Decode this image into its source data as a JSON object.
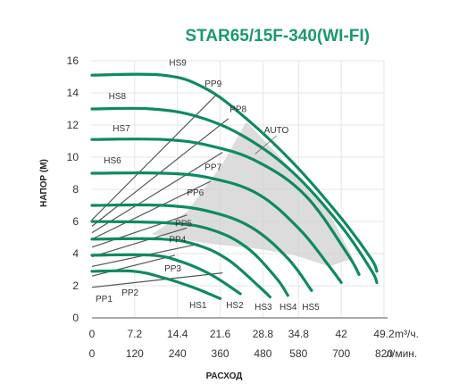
{
  "title": "STAR65/15F-340(WI-FI)",
  "chart_data": {
    "type": "line",
    "title": "STAR65/15F-340(WI-FI)",
    "ylabel": "НАПОР (М)",
    "xlabel": "РАСХОД",
    "ylim": [
      0,
      16
    ],
    "yticks": [
      "0",
      "2",
      "4",
      "6",
      "8",
      "10",
      "12",
      "14",
      "16"
    ],
    "xlim_m3h": [
      0,
      49.2
    ],
    "x_ticks_m3h": [
      "0",
      "7.2",
      "14.4",
      "21.6",
      "28.8",
      "34.8",
      "42",
      "49.2"
    ],
    "x_unit_m3h": "m³/ч.",
    "x_ticks_lmin": [
      "0",
      "120",
      "240",
      "360",
      "480",
      "580",
      "700",
      "820"
    ],
    "x_unit_lmin": "л/мин.",
    "grid": true,
    "colors": {
      "curve": "#0f8a5f",
      "pp_line": "#555555",
      "shade": "#d0d0d0",
      "title": "#1a9a6c"
    },
    "series": [
      {
        "name": "HS1",
        "values": [
          [
            0,
            2.9
          ],
          [
            7,
            2.9
          ],
          [
            12,
            2.5
          ],
          [
            17,
            1.9
          ],
          [
            21.6,
            1.2
          ]
        ]
      },
      {
        "name": "HS2",
        "values": [
          [
            0,
            3.9
          ],
          [
            10,
            3.9
          ],
          [
            15,
            3.5
          ],
          [
            20,
            2.7
          ],
          [
            25,
            1.5
          ]
        ]
      },
      {
        "name": "HS3",
        "values": [
          [
            0,
            4.9
          ],
          [
            12,
            4.9
          ],
          [
            18,
            4.5
          ],
          [
            23,
            3.6
          ],
          [
            28,
            2.0
          ],
          [
            30,
            1.3
          ]
        ]
      },
      {
        "name": "HS4",
        "values": [
          [
            0,
            6.0
          ],
          [
            13,
            5.9
          ],
          [
            20,
            5.5
          ],
          [
            26,
            4.4
          ],
          [
            31,
            2.5
          ],
          [
            33,
            1.4
          ]
        ]
      },
      {
        "name": "HS5",
        "values": [
          [
            0,
            7.0
          ],
          [
            12,
            7.0
          ],
          [
            20,
            6.6
          ],
          [
            27,
            5.6
          ],
          [
            33,
            3.7
          ],
          [
            37,
            1.7
          ]
        ]
      },
      {
        "name": "HS6",
        "values": [
          [
            0,
            9.0
          ],
          [
            12,
            9.0
          ],
          [
            20,
            8.7
          ],
          [
            28,
            7.7
          ],
          [
            35,
            5.5
          ],
          [
            40,
            3.2
          ],
          [
            42,
            2.2
          ]
        ]
      },
      {
        "name": "HS7",
        "values": [
          [
            0,
            11.1
          ],
          [
            12,
            11.1
          ],
          [
            20,
            10.7
          ],
          [
            28,
            9.7
          ],
          [
            36,
            7.6
          ],
          [
            43,
            4.0
          ],
          [
            45,
            2.7
          ]
        ]
      },
      {
        "name": "HS8",
        "values": [
          [
            0,
            13.0
          ],
          [
            10,
            13.0
          ],
          [
            18,
            12.5
          ],
          [
            26,
            11.2
          ],
          [
            34,
            9.0
          ],
          [
            42,
            5.7
          ],
          [
            47,
            3.0
          ],
          [
            48,
            2.2
          ]
        ]
      },
      {
        "name": "HS9",
        "values": [
          [
            0,
            15.1
          ],
          [
            12,
            15.1
          ],
          [
            19,
            14.3
          ],
          [
            26,
            12.4
          ],
          [
            34,
            9.6
          ],
          [
            42,
            6.2
          ],
          [
            47,
            3.7
          ],
          [
            48,
            2.9
          ]
        ]
      },
      {
        "name": "AUTO",
        "values": []
      }
    ],
    "pp_lines": [
      {
        "name": "PP1",
        "values": [
          [
            0,
            1.9
          ],
          [
            22,
            2.8
          ]
        ]
      },
      {
        "name": "PP2",
        "values": [
          [
            0,
            2.6
          ],
          [
            14,
            3.9
          ]
        ]
      },
      {
        "name": "PP3",
        "values": [
          [
            0,
            3.2
          ],
          [
            18,
            4.6
          ]
        ]
      },
      {
        "name": "PP4",
        "values": [
          [
            0,
            3.8
          ],
          [
            16,
            5.6
          ]
        ]
      },
      {
        "name": "PP5",
        "values": [
          [
            0,
            4.4
          ],
          [
            16,
            6.4
          ]
        ]
      },
      {
        "name": "PP6",
        "values": [
          [
            0,
            4.9
          ],
          [
            20,
            8.5
          ]
        ]
      },
      {
        "name": "PP7",
        "values": [
          [
            0,
            5.3
          ],
          [
            22,
            10.3
          ]
        ]
      },
      {
        "name": "PP8",
        "values": [
          [
            0,
            5.7
          ],
          [
            23,
            12.4
          ]
        ]
      },
      {
        "name": "PP9",
        "values": [
          [
            0,
            6.1
          ],
          [
            21,
            13.9
          ]
        ]
      }
    ],
    "curve_labels": [
      "HS1",
      "HS2",
      "HS3",
      "HS4",
      "HS5",
      "HS6",
      "HS7",
      "HS8",
      "HS9",
      "PP1",
      "PP2",
      "PP3",
      "PP4",
      "PP5",
      "PP6",
      "PP7",
      "PP8",
      "PP9",
      "AUTO"
    ]
  }
}
